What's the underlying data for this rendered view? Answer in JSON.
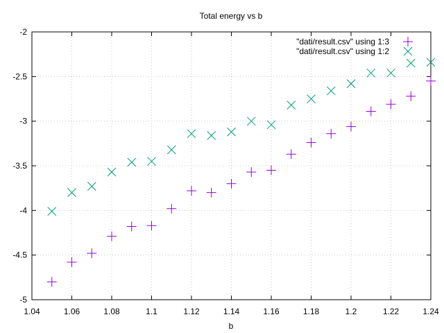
{
  "chart_data": {
    "type": "scatter",
    "title": "Total energy vs b",
    "xlabel": "b",
    "ylabel": "",
    "xlim": [
      1.04,
      1.24
    ],
    "ylim": [
      -5,
      -2
    ],
    "xticks": [
      "1.04",
      "1.06",
      "1.08",
      "1.1",
      "1.12",
      "1.14",
      "1.16",
      "1.18",
      "1.2",
      "1.22",
      "1.24"
    ],
    "yticks": [
      "-2",
      "-2.5",
      "-3",
      "-3.5",
      "-4",
      "-4.5",
      "-5"
    ],
    "grid": true,
    "legend_position": "top-right",
    "series": [
      {
        "name": "\"dati/result.csv\" using 1:3",
        "marker": "plus",
        "color": "#9400d3",
        "x": [
          1.05,
          1.06,
          1.07,
          1.08,
          1.09,
          1.1,
          1.11,
          1.12,
          1.13,
          1.14,
          1.15,
          1.16,
          1.17,
          1.18,
          1.19,
          1.2,
          1.21,
          1.22,
          1.23,
          1.24
        ],
        "y": [
          -4.8,
          -4.58,
          -4.48,
          -4.29,
          -4.18,
          -4.17,
          -3.98,
          -3.78,
          -3.8,
          -3.7,
          -3.57,
          -3.55,
          -3.37,
          -3.24,
          -3.14,
          -3.06,
          -2.89,
          -2.81,
          -2.72,
          -2.55
        ]
      },
      {
        "name": "\"dati/result.csv\" using 1:2",
        "marker": "cross",
        "color": "#009e73",
        "x": [
          1.05,
          1.06,
          1.07,
          1.08,
          1.09,
          1.1,
          1.11,
          1.12,
          1.13,
          1.14,
          1.15,
          1.16,
          1.17,
          1.18,
          1.19,
          1.2,
          1.21,
          1.22,
          1.23,
          1.24
        ],
        "y": [
          -4.01,
          -3.8,
          -3.73,
          -3.57,
          -3.46,
          -3.45,
          -3.32,
          -3.14,
          -3.16,
          -3.12,
          -3.0,
          -3.04,
          -2.82,
          -2.75,
          -2.66,
          -2.58,
          -2.46,
          -2.46,
          -2.35,
          -2.34
        ]
      }
    ]
  }
}
